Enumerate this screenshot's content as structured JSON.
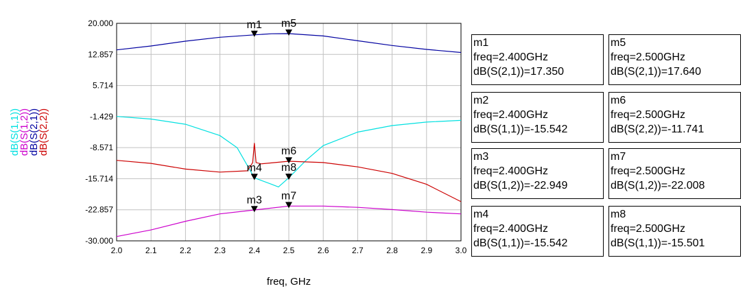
{
  "chart_data": {
    "type": "line",
    "xlabel": "freq, GHz",
    "xlim": [
      2.0,
      3.0
    ],
    "ylim": [
      -30.0,
      20.0
    ],
    "x_ticks": [
      "2.0",
      "2.1",
      "2.2",
      "2.3",
      "2.4",
      "2.5",
      "2.6",
      "2.7",
      "2.8",
      "2.9",
      "3.0"
    ],
    "y_ticks": [
      "20.000",
      "12.857",
      "5.714",
      "-1.429",
      "-8.571",
      "-15.714",
      "-22.857",
      "-30.000"
    ],
    "grid": true,
    "series": [
      {
        "name": "dB(S(1,1))",
        "color": "#00e0e0",
        "points": [
          [
            2.0,
            -1.4
          ],
          [
            2.1,
            -2.0
          ],
          [
            2.2,
            -3.2
          ],
          [
            2.3,
            -5.8
          ],
          [
            2.35,
            -8.6
          ],
          [
            2.4,
            -15.5
          ],
          [
            2.45,
            -17.0
          ],
          [
            2.47,
            -17.6
          ],
          [
            2.5,
            -15.5
          ],
          [
            2.55,
            -11.5
          ],
          [
            2.6,
            -8.1
          ],
          [
            2.7,
            -5.0
          ],
          [
            2.8,
            -3.5
          ],
          [
            2.9,
            -2.7
          ],
          [
            3.0,
            -2.3
          ]
        ]
      },
      {
        "name": "dB(S(1,2))",
        "color": "#cc00cc",
        "points": [
          [
            2.0,
            -29.0
          ],
          [
            2.1,
            -27.5
          ],
          [
            2.2,
            -25.5
          ],
          [
            2.3,
            -23.8
          ],
          [
            2.4,
            -22.9
          ],
          [
            2.5,
            -22.0
          ],
          [
            2.6,
            -22.0
          ],
          [
            2.7,
            -22.3
          ],
          [
            2.8,
            -22.8
          ],
          [
            2.9,
            -23.4
          ],
          [
            3.0,
            -23.8
          ]
        ]
      },
      {
        "name": "dB(S(2,1))",
        "color": "#0000a0",
        "points": [
          [
            2.0,
            13.9
          ],
          [
            2.1,
            14.8
          ],
          [
            2.2,
            15.9
          ],
          [
            2.3,
            16.8
          ],
          [
            2.4,
            17.35
          ],
          [
            2.45,
            17.6
          ],
          [
            2.5,
            17.64
          ],
          [
            2.6,
            17.1
          ],
          [
            2.7,
            16.0
          ],
          [
            2.8,
            14.9
          ],
          [
            2.9,
            14.0
          ],
          [
            3.0,
            13.3
          ]
        ]
      },
      {
        "name": "dB(S(2,2))",
        "color": "#cc0000",
        "points": [
          [
            2.0,
            -11.5
          ],
          [
            2.1,
            -12.2
          ],
          [
            2.2,
            -13.5
          ],
          [
            2.3,
            -14.2
          ],
          [
            2.38,
            -13.9
          ],
          [
            2.395,
            -12.0
          ],
          [
            2.4,
            -7.5
          ],
          [
            2.405,
            -12.0
          ],
          [
            2.42,
            -12.3
          ],
          [
            2.5,
            -11.7
          ],
          [
            2.6,
            -12.0
          ],
          [
            2.7,
            -13.0
          ],
          [
            2.8,
            -14.5
          ],
          [
            2.9,
            -17.0
          ],
          [
            3.0,
            -21.0
          ]
        ]
      }
    ],
    "markers": [
      {
        "name": "m1",
        "x": 2.4,
        "y": 17.35
      },
      {
        "name": "m5",
        "x": 2.5,
        "y": 17.64
      },
      {
        "name": "m2",
        "x": 2.4,
        "y": -15.542
      },
      {
        "name": "m4",
        "x": 2.4,
        "y": -15.542
      },
      {
        "name": "m6",
        "x": 2.5,
        "y": -11.741
      },
      {
        "name": "m8",
        "x": 2.5,
        "y": -15.501
      },
      {
        "name": "m3",
        "x": 2.4,
        "y": -22.949
      },
      {
        "name": "m7",
        "x": 2.5,
        "y": -22.008
      }
    ],
    "marker_labels": [
      {
        "text": "m1",
        "x": 2.4,
        "y": 17.35
      },
      {
        "text": "m5",
        "x": 2.5,
        "y": 17.64
      },
      {
        "text": "m6",
        "x": 2.5,
        "y": -11.741
      },
      {
        "text": "m8",
        "x": 2.5,
        "y": -15.501
      },
      {
        "text": "m4",
        "x": 2.4,
        "y": -15.542
      },
      {
        "text": "m3",
        "x": 2.4,
        "y": -22.949
      },
      {
        "text": "m7",
        "x": 2.5,
        "y": -22.008
      }
    ]
  },
  "readouts": [
    {
      "name": "m1",
      "freq": "freq=2.400GHz",
      "value": "dB(S(2,1))=17.350"
    },
    {
      "name": "m5",
      "freq": "freq=2.500GHz",
      "value": "dB(S(2,1))=17.640"
    },
    {
      "name": "m2",
      "freq": "freq=2.400GHz",
      "value": "dB(S(1,1))=-15.542"
    },
    {
      "name": "m6",
      "freq": "freq=2.500GHz",
      "value": "dB(S(2,2))=-11.741"
    },
    {
      "name": "m3",
      "freq": "freq=2.400GHz",
      "value": "dB(S(1,2))=-22.949"
    },
    {
      "name": "m7",
      "freq": "freq=2.500GHz",
      "value": "dB(S(1,2))=-22.008"
    },
    {
      "name": "m4",
      "freq": "freq=2.400GHz",
      "value": "dB(S(1,1))=-15.542"
    },
    {
      "name": "m8",
      "freq": "freq=2.500GHz",
      "value": "dB(S(1,1))=-15.501"
    }
  ]
}
